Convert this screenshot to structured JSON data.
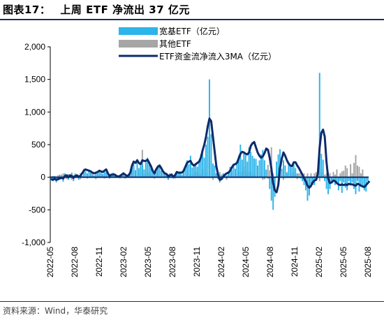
{
  "header": {
    "figure_label": "图表17：",
    "title": "上周 ETF 净流出 37 亿元"
  },
  "footer": {
    "source": "资料来源：Wind，华泰研究"
  },
  "colors": {
    "broad_base": "#2db4ea",
    "other": "#a6a6a6",
    "ma_line": "#0d2b6b",
    "rule": "#1a2e5a"
  },
  "chart_data": {
    "type": "bar",
    "title": "",
    "xlabel": "",
    "ylabel": "",
    "ylim": [
      -1000,
      2000
    ],
    "yticks": [
      -1000,
      -500,
      0,
      500,
      1000,
      1500,
      2000
    ],
    "ytick_labels": [
      "-1,000",
      "-500",
      "0",
      "500",
      "1,000",
      "1,500",
      "2,000"
    ],
    "xtick_labels": [
      "2022-05",
      "2022-08",
      "2022-11",
      "2023-02",
      "2023-05",
      "2023-08",
      "2023-11",
      "2024-02",
      "2024-05",
      "2024-08",
      "2024-11",
      "2025-02",
      "2025-05",
      "2025-08"
    ],
    "legend": {
      "placement": "top-center",
      "entries": [
        "宽基ETF（亿元）",
        "其他ETF",
        "ETF资金流净流入3MA（亿元）"
      ]
    },
    "grid": false,
    "series": [
      {
        "name": "宽基ETF（亿元）",
        "kind": "bar",
        "values": [
          -40,
          -60,
          20,
          -80,
          -50,
          40,
          -30,
          -70,
          60,
          30,
          -40,
          40,
          70,
          -60,
          40,
          20,
          -40,
          60,
          20,
          130,
          90,
          60,
          110,
          70,
          40,
          30,
          70,
          60,
          100,
          70,
          50,
          120,
          80,
          30,
          -20,
          40,
          70,
          30,
          20,
          -10,
          10,
          30,
          40,
          -20,
          -10,
          20,
          70,
          160,
          200,
          110,
          280,
          140,
          180,
          210,
          120,
          230,
          300,
          190,
          140,
          80,
          50,
          120,
          180,
          160,
          100,
          70,
          40,
          60,
          -40,
          20,
          60,
          -20,
          30,
          80,
          60,
          60,
          40,
          90,
          150,
          260,
          200,
          330,
          150,
          180,
          200,
          160,
          230,
          350,
          410,
          300,
          500,
          620,
          1500,
          660,
          210,
          180,
          60,
          -30,
          -80,
          20,
          60,
          40,
          30,
          90,
          160,
          110,
          210,
          130,
          200,
          330,
          500,
          270,
          380,
          340,
          240,
          460,
          390,
          330,
          290,
          280,
          180,
          260,
          350,
          420,
          260,
          110,
          -20,
          -180,
          -360,
          -500,
          -300,
          240,
          350,
          430,
          130,
          260,
          180,
          60,
          220,
          170,
          150,
          200,
          140,
          60,
          20,
          -20,
          -60,
          -120,
          -200,
          -360,
          -280,
          -160,
          -60,
          -120,
          -20,
          140,
          1600,
          360,
          270,
          -60,
          -180,
          -260,
          -180,
          -80,
          -40,
          -120,
          -90,
          -200,
          -60,
          -240,
          -80,
          -160,
          -200,
          -60,
          -120,
          -80,
          -180,
          -260,
          -60,
          -220,
          -120,
          -160,
          -200,
          -220,
          -60
        ],
        "color": "#2db4ea"
      },
      {
        "name": "其他ETF",
        "kind": "bar",
        "values": [
          -20,
          20,
          -30,
          10,
          30,
          -20,
          40,
          60,
          20,
          -30,
          50,
          20,
          -40,
          30,
          60,
          40,
          20,
          -30,
          20,
          60,
          40,
          -20,
          30,
          40,
          60,
          20,
          -30,
          40,
          20,
          60,
          40,
          -20,
          30,
          70,
          40,
          20,
          60,
          40,
          20,
          30,
          -20,
          40,
          60,
          20,
          40,
          30,
          60,
          80,
          130,
          90,
          40,
          60,
          80,
          420,
          60,
          40,
          90,
          60,
          40,
          30,
          -20,
          60,
          80,
          40,
          30,
          20,
          50,
          40,
          -30,
          60,
          40,
          30,
          -20,
          40,
          60,
          90,
          40,
          60,
          120,
          80,
          60,
          40,
          30,
          60,
          90,
          80,
          40,
          60,
          120,
          140,
          80,
          100,
          160,
          60,
          -40,
          90,
          60,
          40,
          80,
          40,
          60,
          30,
          -40,
          40,
          60,
          80,
          40,
          60,
          60,
          90,
          80,
          80,
          160,
          100,
          60,
          90,
          80,
          60,
          40,
          30,
          60,
          80,
          60,
          -40,
          -30,
          120,
          190,
          110,
          460,
          60,
          -60,
          90,
          60,
          80,
          40,
          -40,
          60,
          80,
          60,
          20,
          60,
          80,
          40,
          -30,
          60,
          90,
          40,
          60,
          -40,
          60,
          -90,
          60,
          -120,
          60,
          80,
          40,
          -60,
          80,
          120,
          40,
          60,
          80,
          60,
          -20,
          80,
          40,
          120,
          -60,
          60,
          90,
          100,
          180,
          140,
          -40,
          200,
          60,
          220,
          340,
          180,
          160,
          60,
          120
        ],
        "color": "#a6a6a6"
      },
      {
        "name": "ETF资金流净流入3MA（亿元）",
        "kind": "line",
        "values": [
          -30,
          -40,
          -25,
          -40,
          -30,
          -20,
          -10,
          -20,
          20,
          30,
          0,
          30,
          20,
          -10,
          20,
          30,
          10,
          20,
          60,
          100,
          120,
          110,
          100,
          90,
          70,
          60,
          70,
          80,
          100,
          90,
          80,
          100,
          120,
          60,
          20,
          40,
          40,
          40,
          20,
          10,
          20,
          40,
          60,
          40,
          20,
          30,
          70,
          180,
          240,
          220,
          260,
          220,
          200,
          260,
          250,
          250,
          270,
          220,
          170,
          100,
          60,
          120,
          160,
          180,
          140,
          90,
          60,
          50,
          20,
          30,
          40,
          10,
          30,
          80,
          70,
          70,
          70,
          100,
          160,
          220,
          240,
          250,
          200,
          180,
          200,
          220,
          240,
          300,
          410,
          500,
          620,
          780,
          900,
          860,
          630,
          400,
          170,
          40,
          -40,
          -30,
          10,
          40,
          60,
          70,
          100,
          150,
          190,
          200,
          220,
          290,
          360,
          390,
          380,
          360,
          350,
          380,
          480,
          520,
          540,
          460,
          380,
          330,
          300,
          320,
          370,
          440,
          420,
          300,
          130,
          -90,
          -200,
          -230,
          -120,
          140,
          280,
          380,
          330,
          260,
          210,
          180,
          170,
          230,
          230,
          180,
          140,
          90,
          40,
          -20,
          -60,
          -130,
          -160,
          -130,
          -80,
          -50,
          -40,
          50,
          450,
          680,
          730,
          620,
          240,
          -20,
          -90,
          -80,
          -50,
          -60,
          -90,
          -110,
          -120,
          -110,
          -120,
          -110,
          -120,
          -100,
          -110,
          -110,
          -120,
          -130,
          -100,
          -110,
          -130,
          -140,
          -150,
          -120,
          -90,
          -60
        ],
        "color": "#0d2b6b"
      }
    ]
  }
}
